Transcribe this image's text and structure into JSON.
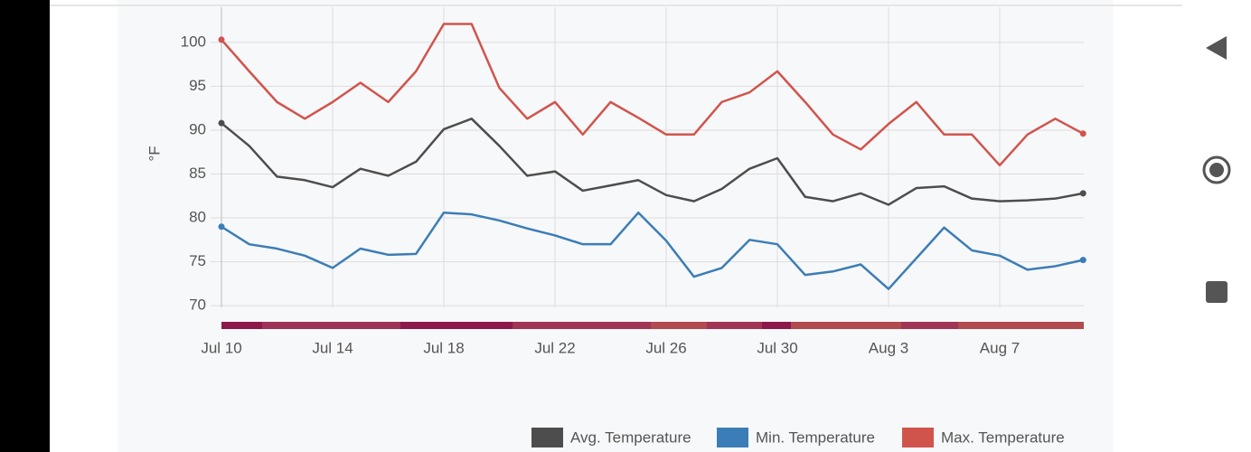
{
  "chart_data": {
    "type": "line",
    "y_label": "°F",
    "categories": [
      "Jul 10",
      null,
      null,
      null,
      "Jul 14",
      null,
      null,
      null,
      "Jul 18",
      null,
      null,
      null,
      "Jul 22",
      null,
      null,
      null,
      "Jul 26",
      null,
      null,
      null,
      "Jul 30",
      null,
      null,
      null,
      "Aug 3",
      null,
      null,
      null,
      "Aug 7",
      null,
      null,
      null
    ],
    "ylim": [
      69.5,
      104
    ],
    "yticks": [
      70,
      75,
      80,
      85,
      90,
      95,
      100
    ],
    "grid": true,
    "legend": "bottom-right",
    "series": [
      {
        "name": "Avg. Temperature",
        "color": "#4d4d4d",
        "values": [
          90.8,
          88.2,
          84.7,
          84.3,
          83.5,
          85.6,
          84.8,
          86.4,
          90.1,
          91.3,
          88.2,
          84.8,
          85.3,
          83.1,
          83.7,
          84.3,
          82.6,
          81.9,
          83.3,
          85.6,
          86.8,
          82.4,
          81.9,
          82.8,
          81.5,
          83.4,
          83.6,
          82.2,
          81.9,
          82.0,
          82.2,
          82.8
        ]
      },
      {
        "name": "Min. Temperature",
        "color": "#3b7db6",
        "values": [
          79.0,
          77.0,
          76.5,
          75.7,
          74.3,
          76.5,
          75.8,
          75.9,
          80.6,
          80.4,
          79.7,
          78.8,
          78.0,
          77.0,
          77.0,
          80.6,
          77.4,
          73.3,
          74.3,
          77.5,
          77.0,
          73.5,
          73.9,
          74.7,
          71.9,
          75.4,
          78.9,
          76.3,
          75.7,
          74.1,
          74.5,
          75.2
        ]
      },
      {
        "name": "Max. Temperature",
        "color": "#d1544c",
        "values": [
          100.3,
          96.7,
          93.2,
          91.3,
          93.2,
          95.4,
          93.2,
          96.7,
          102.1,
          102.1,
          94.8,
          91.3,
          93.2,
          89.5,
          93.2,
          91.4,
          89.5,
          89.5,
          93.2,
          94.3,
          96.7,
          93.2,
          89.5,
          87.8,
          90.7,
          93.2,
          89.5,
          89.5,
          86.0,
          89.5,
          91.3,
          89.6
        ]
      }
    ]
  }
}
